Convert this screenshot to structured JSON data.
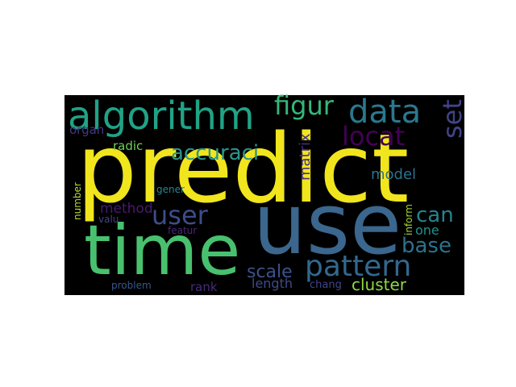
{
  "wordcloud": {
    "background": "#000000",
    "words": [
      {
        "text": "predict",
        "color": "#f1e51d"
      },
      {
        "text": "use",
        "color": "#3b668d"
      },
      {
        "text": "time",
        "color": "#48c16e"
      },
      {
        "text": "algorithm",
        "color": "#20a386"
      },
      {
        "text": "pattern",
        "color": "#31688e"
      },
      {
        "text": "data",
        "color": "#2a788e"
      },
      {
        "text": "figur",
        "color": "#35b779"
      },
      {
        "text": "user",
        "color": "#3e4c8a"
      },
      {
        "text": "accuraci",
        "color": "#2a968c"
      },
      {
        "text": "locat",
        "color": "#440154"
      },
      {
        "text": "set",
        "color": "#414487"
      },
      {
        "text": "can",
        "color": "#25848e"
      },
      {
        "text": "base",
        "color": "#2c728e"
      },
      {
        "text": "scale",
        "color": "#3b528b"
      },
      {
        "text": "cluster",
        "color": "#90d743"
      },
      {
        "text": "model",
        "color": "#2c718e"
      },
      {
        "text": "method",
        "color": "#481a6c"
      },
      {
        "text": "matrix",
        "color": "#46327e"
      },
      {
        "text": "one",
        "color": "#21918c"
      },
      {
        "text": "radic",
        "color": "#6ece58"
      },
      {
        "text": "organ",
        "color": "#443983"
      },
      {
        "text": "gener",
        "color": "#23898e"
      },
      {
        "text": "inform",
        "color": "#a8db34"
      },
      {
        "text": "number",
        "color": "#b5de2b"
      },
      {
        "text": "length",
        "color": "#3f4a8a"
      },
      {
        "text": "rank",
        "color": "#472c7a"
      },
      {
        "text": "problem",
        "color": "#39568c"
      },
      {
        "text": "chang",
        "color": "#404688"
      },
      {
        "text": "valu",
        "color": "#414487"
      },
      {
        "text": "featur",
        "color": "#482878"
      }
    ]
  }
}
